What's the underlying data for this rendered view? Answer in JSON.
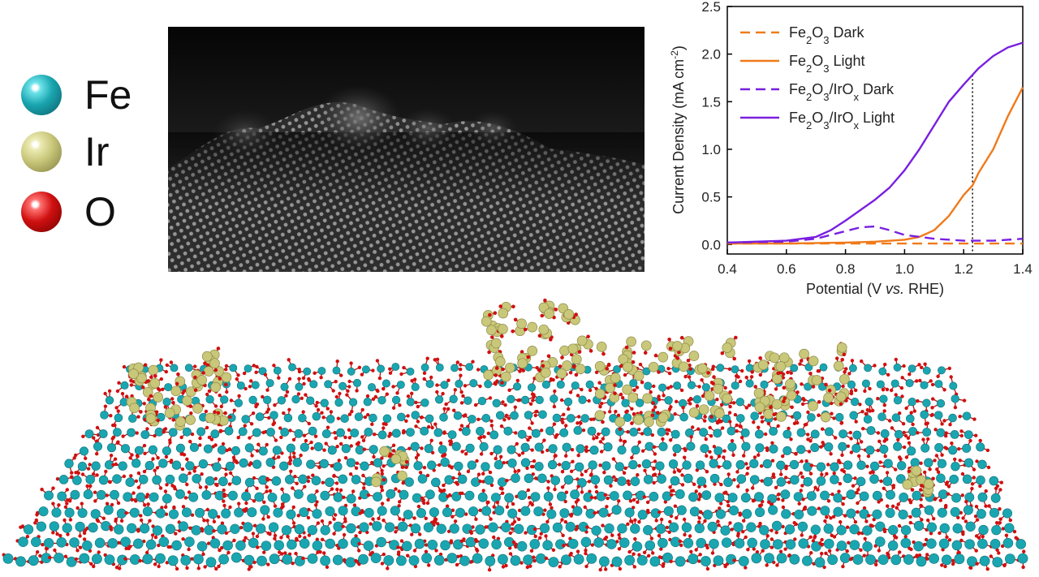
{
  "atom_legend": [
    {
      "symbol": "Fe",
      "color": "#1aa6b0"
    },
    {
      "symbol": "Ir",
      "color": "#c9c77a"
    },
    {
      "symbol": "O",
      "color": "#d01010"
    }
  ],
  "chart_data": {
    "type": "line",
    "xlabel": "Potential (V vs. RHE)",
    "ylabel": "Current Density (mA cm-2)",
    "xlim": [
      0.4,
      1.4
    ],
    "ylim": [
      -0.1,
      2.5
    ],
    "xticks": [
      "0.4",
      "0.6",
      "0.8",
      "1.0",
      "1.2",
      "1.4"
    ],
    "yticks": [
      "0.0",
      "0.5",
      "1.0",
      "1.5",
      "2.0",
      "2.5"
    ],
    "grid": false,
    "legend_position": "top-left",
    "marker_line_x": 1.23,
    "series": [
      {
        "name": "Fe2O3 Dark",
        "color": "#f07a1a",
        "style": "dashed",
        "x": [
          0.4,
          0.6,
          0.8,
          1.0,
          1.2,
          1.4
        ],
        "y": [
          0.01,
          0.01,
          0.01,
          0.01,
          0.01,
          0.01
        ]
      },
      {
        "name": "Fe2O3 Light",
        "color": "#f07a1a",
        "style": "solid",
        "x": [
          0.4,
          0.6,
          0.8,
          0.9,
          1.0,
          1.05,
          1.1,
          1.15,
          1.2,
          1.23,
          1.25,
          1.3,
          1.35,
          1.4
        ],
        "y": [
          0.01,
          0.01,
          0.02,
          0.03,
          0.05,
          0.08,
          0.15,
          0.3,
          0.52,
          0.62,
          0.75,
          1.0,
          1.35,
          1.65
        ]
      },
      {
        "name": "Fe2O3/IrOx Dark",
        "color": "#7a1fe0",
        "style": "dashed",
        "x": [
          0.4,
          0.6,
          0.7,
          0.8,
          0.85,
          0.9,
          0.95,
          1.0,
          1.1,
          1.2,
          1.3,
          1.4
        ],
        "y": [
          0.02,
          0.03,
          0.06,
          0.14,
          0.18,
          0.19,
          0.15,
          0.1,
          0.06,
          0.04,
          0.04,
          0.06
        ]
      },
      {
        "name": "Fe2O3/IrOx Light",
        "color": "#7a1fe0",
        "style": "solid",
        "x": [
          0.4,
          0.6,
          0.7,
          0.75,
          0.8,
          0.85,
          0.9,
          0.95,
          1.0,
          1.05,
          1.1,
          1.15,
          1.2,
          1.25,
          1.3,
          1.35,
          1.4
        ],
        "y": [
          0.02,
          0.04,
          0.08,
          0.15,
          0.25,
          0.36,
          0.47,
          0.6,
          0.78,
          1.0,
          1.25,
          1.5,
          1.68,
          1.85,
          1.98,
          2.07,
          2.12
        ]
      }
    ]
  }
}
